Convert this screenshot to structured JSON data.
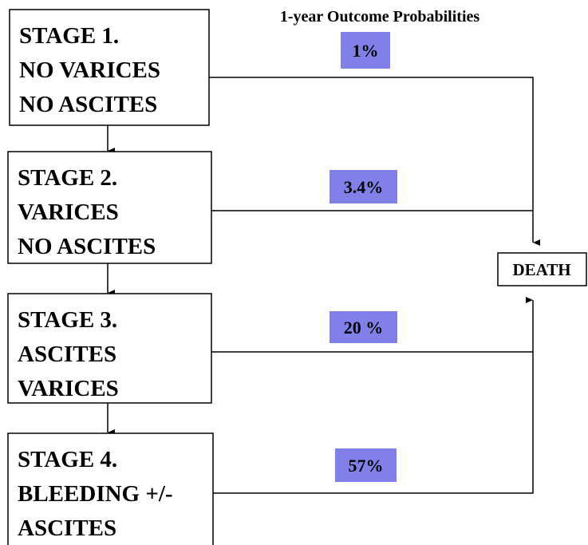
{
  "title": "1-year Outcome Probabilities",
  "stages": [
    {
      "lines": [
        "STAGE 1.",
        "NO VARICES",
        "NO ASCITES"
      ],
      "probability": "1%"
    },
    {
      "lines": [
        "STAGE 2.",
        "VARICES",
        "NO ASCITES"
      ],
      "probability": "3.4%"
    },
    {
      "lines": [
        "STAGE 3.",
        "ASCITES",
        "VARICES"
      ],
      "probability": "20 %"
    },
    {
      "lines": [
        "STAGE 4.",
        "BLEEDING +/-",
        "ASCITES"
      ],
      "probability": "57%"
    }
  ],
  "outcome": "DEATH"
}
